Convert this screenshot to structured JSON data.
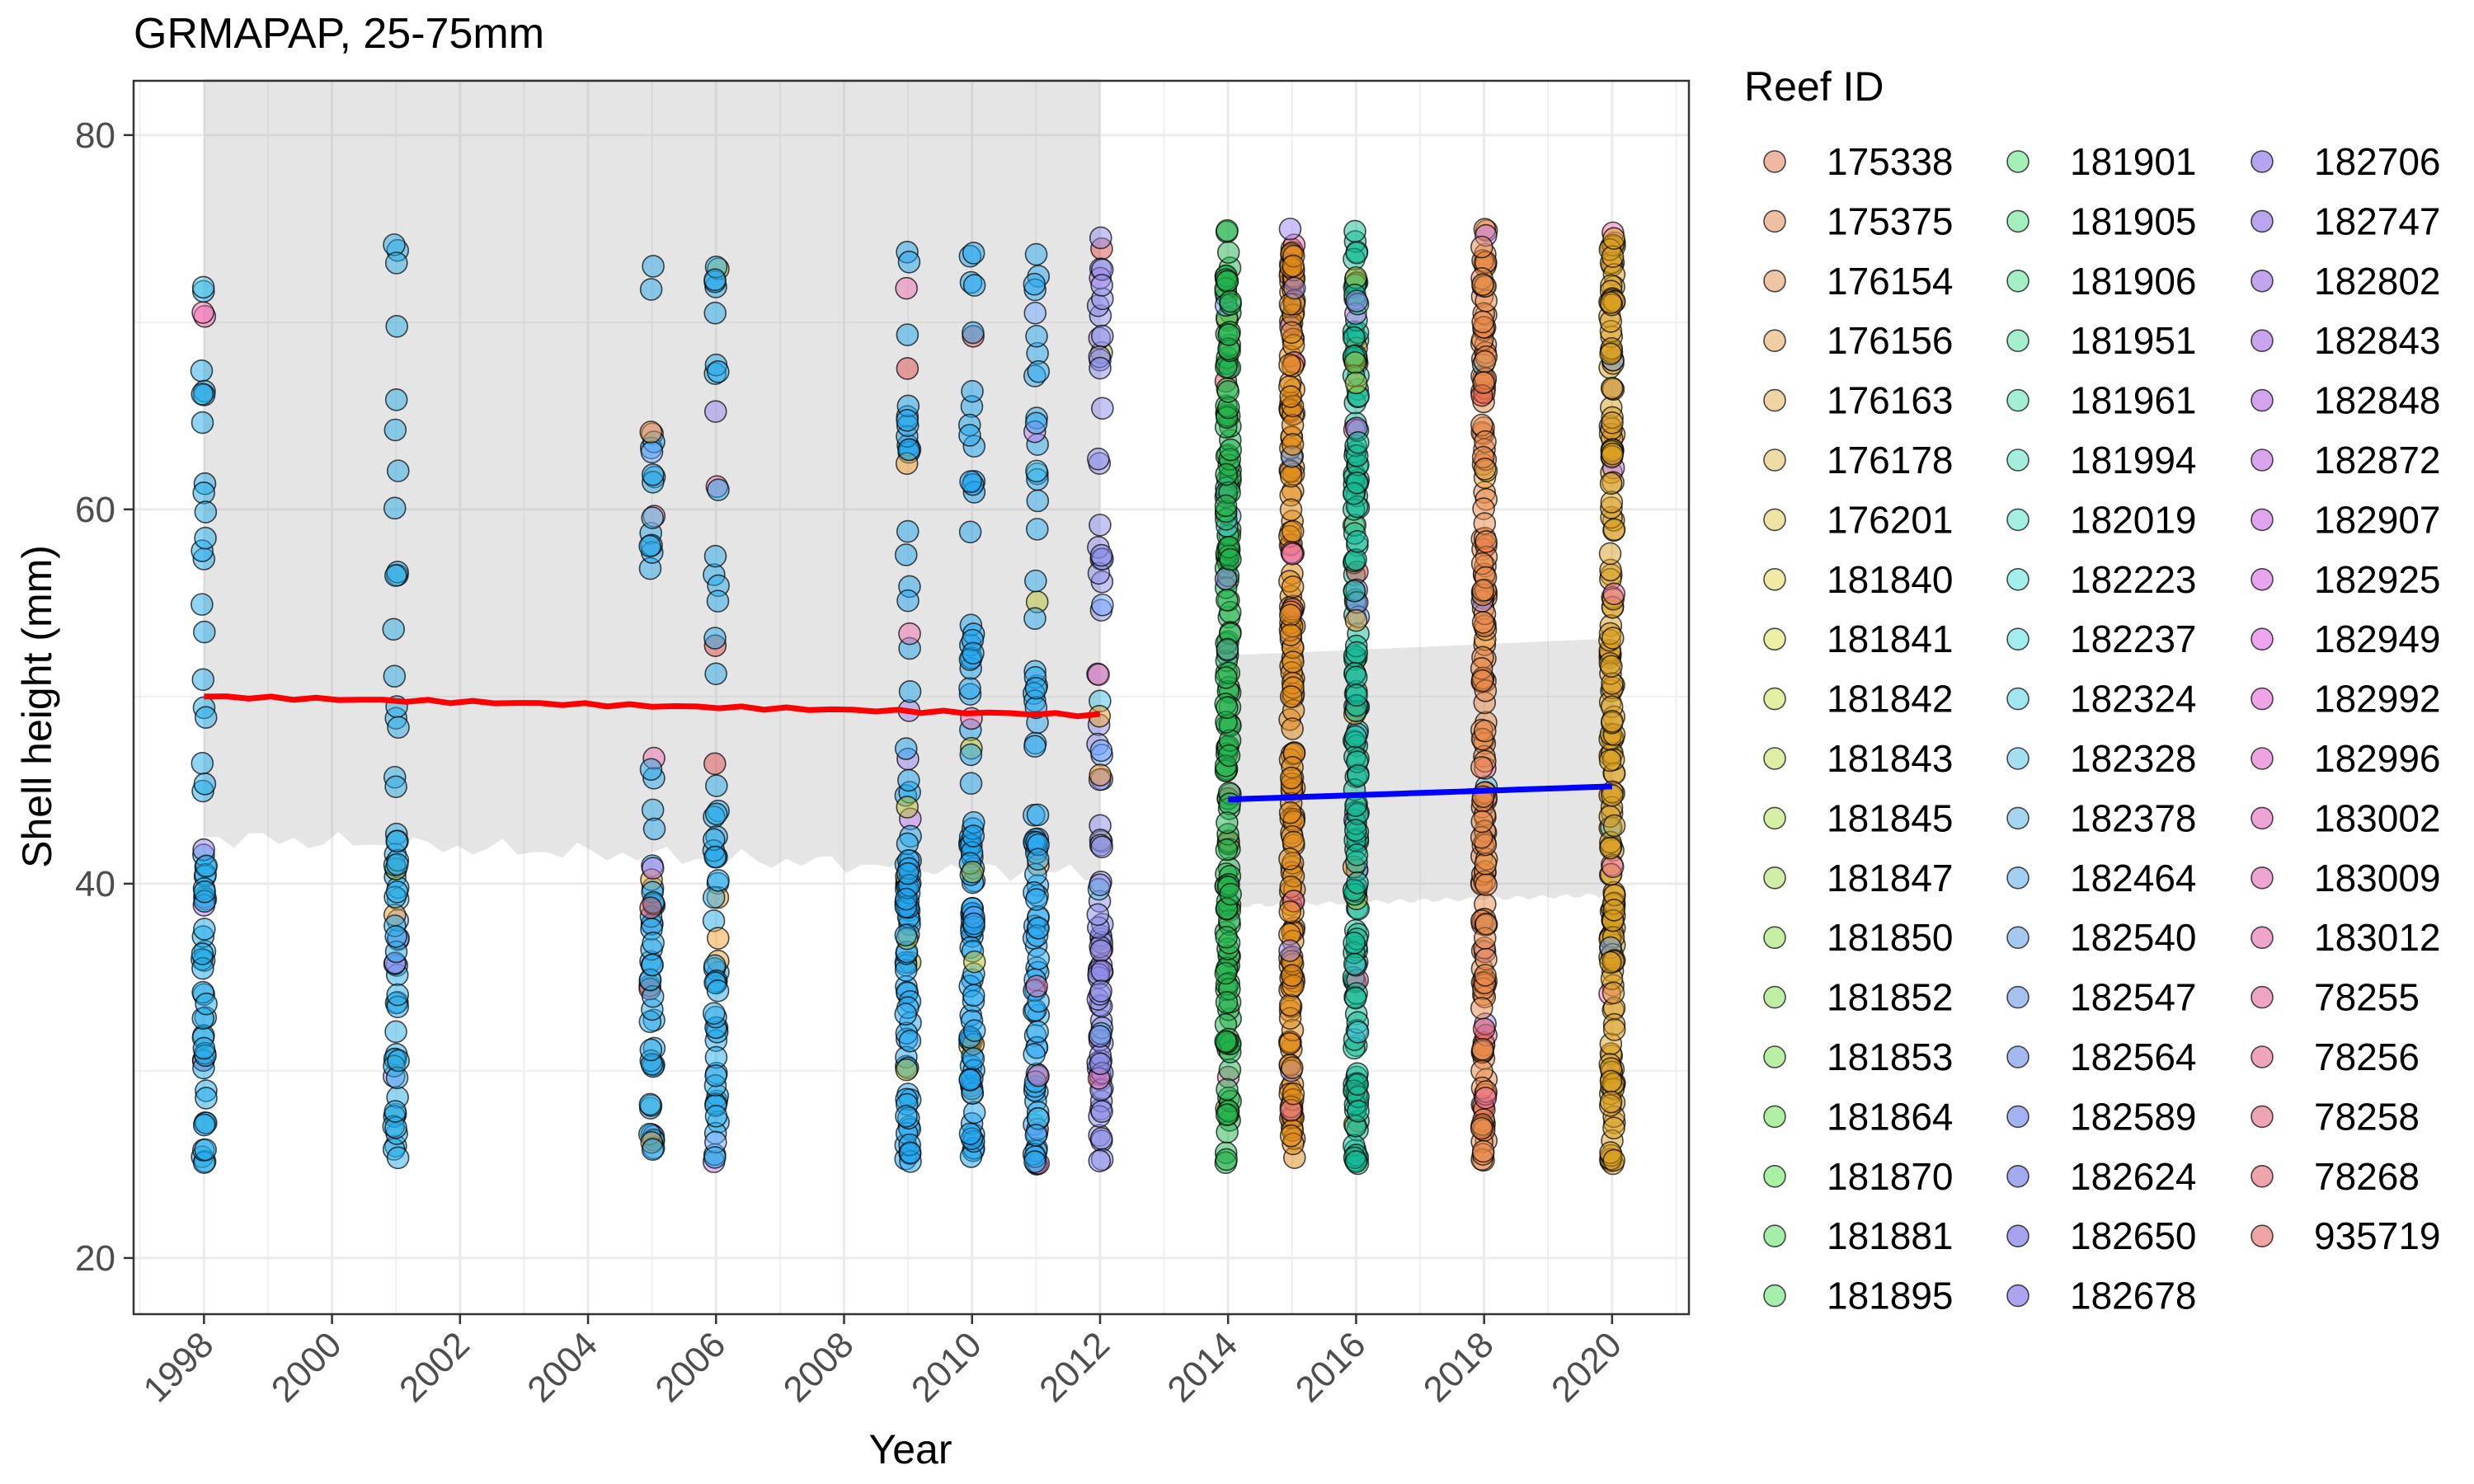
{
  "chart_data": {
    "type": "scatter",
    "title": "GRMAPAP, 25-75mm",
    "xlabel": "Year",
    "ylabel": "Shell height (mm)",
    "xlim": [
      1996.9,
      2021.2
    ],
    "ylim": [
      17,
      82.9
    ],
    "x_ticks": [
      1998,
      2000,
      2002,
      2004,
      2006,
      2008,
      2010,
      2012,
      2014,
      2016,
      2018,
      2020
    ],
    "x_tick_labels": [
      "1998",
      "2000",
      "2002",
      "2004",
      "2006",
      "2008",
      "2010",
      "2012",
      "2014",
      "2016",
      "2018",
      "2020"
    ],
    "y_ticks": [
      20,
      40,
      60,
      80
    ],
    "y_tick_labels": [
      "20",
      "40",
      "60",
      "80"
    ],
    "grid": true,
    "legend_position": "right",
    "legend_title": "Reef ID",
    "legend_entries": [
      "175338",
      "175375",
      "176154",
      "176156",
      "176163",
      "176178",
      "176201",
      "181840",
      "181841",
      "181842",
      "181843",
      "181845",
      "181847",
      "181850",
      "181852",
      "181853",
      "181864",
      "181870",
      "181881",
      "181895",
      "181901",
      "181905",
      "181906",
      "181951",
      "181961",
      "181994",
      "182019",
      "182223",
      "182237",
      "182324",
      "182328",
      "182378",
      "182464",
      "182540",
      "182547",
      "182564",
      "182589",
      "182624",
      "182650",
      "182678",
      "182706",
      "182747",
      "182802",
      "182843",
      "182848",
      "182872",
      "182907",
      "182925",
      "182949",
      "182992",
      "182996",
      "183002",
      "183009",
      "183012",
      "78255",
      "78256",
      "78258",
      "78268",
      "935719"
    ],
    "point_years": [
      {
        "year": 1998,
        "color": "#1fa9e8"
      },
      {
        "year": 2001,
        "color": "#29abe6"
      },
      {
        "year": 2005,
        "color": "#2aa8e8"
      },
      {
        "year": 2006,
        "color": "#25a9e9"
      },
      {
        "year": 2009,
        "color": "#22a5ee"
      },
      {
        "year": 2010,
        "color": "#1ea4ef"
      },
      {
        "year": 2011,
        "color": "#29aaf0"
      },
      {
        "year": 2012,
        "color": "#8c8ee8"
      },
      {
        "year": 2014,
        "color": "#21b24b"
      },
      {
        "year": 2015,
        "color": "#e08a17"
      },
      {
        "year": 2016,
        "color": "#13b993"
      },
      {
        "year": 2018,
        "color": "#e8894a"
      },
      {
        "year": 2020,
        "color": "#d9a021"
      }
    ],
    "series": [
      {
        "name": "",
        "color": "#ff0000",
        "x": [
          1998,
          2012
        ],
        "y": [
          50.0,
          49.0
        ],
        "ci_lower": [
          42.5,
          40.5
        ],
        "ci_upper": [
          83,
          83
        ]
      },
      {
        "name": "",
        "color": "#0000ff",
        "x": [
          2014,
          2020
        ],
        "y": [
          44.5,
          45.2
        ],
        "ci_lower": [
          38.8,
          39.4
        ],
        "ci_upper": [
          52.2,
          53.1
        ]
      }
    ]
  }
}
